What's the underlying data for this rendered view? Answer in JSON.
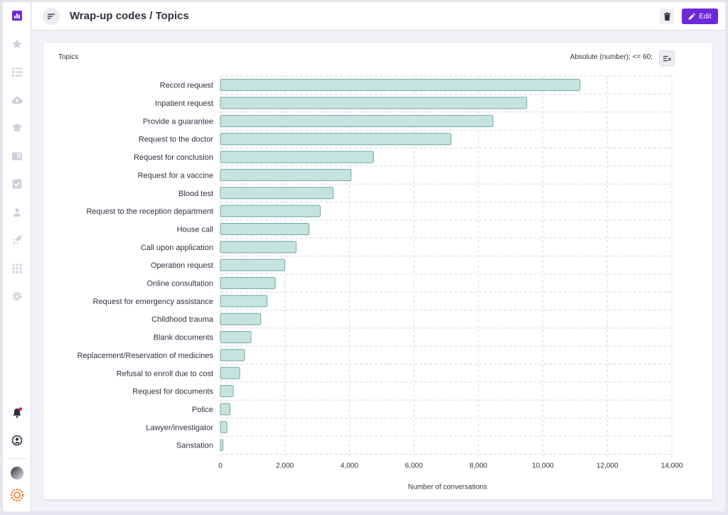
{
  "page": {
    "title": "Wrap-up codes / Topics",
    "edit_label": "Edit"
  },
  "sidebar": {
    "items": [
      {
        "icon": "bar-chart-icon",
        "active": true
      },
      {
        "icon": "star-icon"
      },
      {
        "icon": "list-icon"
      },
      {
        "icon": "cloud-upload-icon"
      },
      {
        "icon": "graduation-cap-icon"
      },
      {
        "icon": "book-icon"
      },
      {
        "icon": "checkbox-icon"
      },
      {
        "icon": "people-icon"
      },
      {
        "icon": "rocket-icon"
      },
      {
        "icon": "apps-grid-icon"
      },
      {
        "icon": "gear-icon"
      }
    ],
    "bottom": [
      {
        "icon": "bell-icon",
        "has_notification": true
      },
      {
        "icon": "account-icon"
      },
      {
        "icon": "theme-icon"
      },
      {
        "icon": "brand-logo-icon"
      }
    ]
  },
  "colors": {
    "accent": "#6d28d9",
    "bar_fill": "#c5e3df",
    "bar_stroke": "#6fa8a0",
    "grid": "#d8d8e4",
    "notification_dot": "#e11d48"
  },
  "card": {
    "title": "Topics",
    "filter_label": "Absolute (number); <= 60;"
  },
  "chart_data": {
    "type": "bar",
    "orientation": "horizontal",
    "title": "",
    "xlabel": "Number of conversations",
    "ylabel": "",
    "xlim": [
      0,
      14000
    ],
    "xticks": [
      0,
      2000,
      4000,
      6000,
      8000,
      10000,
      12000,
      14000
    ],
    "xtick_labels": [
      "0",
      "2,000",
      "4,000",
      "6,000",
      "8,000",
      "10,000",
      "12,000",
      "14,000"
    ],
    "grid": true,
    "categories": [
      "Record request",
      "Inpatient request",
      "Provide a guarantee",
      "Request to the doctor",
      "Request for conclusion",
      "Request for a vaccine",
      "Blood test",
      "Request to the reception department",
      "House call",
      "Call upon application",
      "Operation request",
      "Online consultation",
      "Request for emergency assistance",
      "Childhood trauma",
      "Blank documents",
      "Replacement/Reservation of medicines",
      "Refusal to enroll due to cost",
      "Request for documents",
      "Police",
      "Lawyer/investigator",
      "Sanstation"
    ],
    "values": [
      11150,
      9500,
      8450,
      7150,
      4750,
      4050,
      3500,
      3100,
      2750,
      2350,
      2000,
      1700,
      1450,
      1250,
      950,
      750,
      600,
      400,
      300,
      200,
      80
    ]
  }
}
